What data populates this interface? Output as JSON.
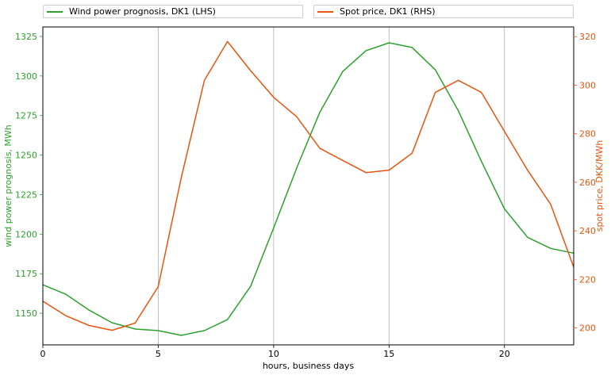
{
  "chart_data": {
    "type": "line",
    "xlabel": "hours, business days",
    "x": [
      0,
      1,
      2,
      3,
      4,
      5,
      6,
      7,
      8,
      9,
      10,
      11,
      12,
      13,
      14,
      15,
      16,
      17,
      18,
      19,
      20,
      21,
      22,
      23
    ],
    "xlim": [
      0,
      23
    ],
    "xticks": [
      0,
      5,
      10,
      15,
      20
    ],
    "grid": "vertical lines at x ticks",
    "legend": "above plot, two boxes side by side",
    "series": [
      {
        "name": "Wind power prognosis, DK1 (LHS)",
        "axis": "left",
        "color": "#2ca02c",
        "values": [
          1168,
          1162,
          1152,
          1144,
          1140,
          1139,
          1136,
          1139,
          1146,
          1167,
          1204,
          1242,
          1277,
          1303,
          1316,
          1321,
          1318,
          1304,
          1278,
          1246,
          1216,
          1198,
          1191,
          1188
        ]
      },
      {
        "name": "Spot price, DK1 (RHS)",
        "axis": "right",
        "color": "#e6550d",
        "values": [
          211,
          205,
          201,
          199,
          202,
          217,
          262,
          302,
          318,
          306,
          295,
          287,
          274,
          269,
          264,
          265,
          272,
          297,
          302,
          297,
          281,
          265,
          251,
          225
        ]
      }
    ],
    "y_left": {
      "label": "wind power prognosis, MWh",
      "color": "#2ca02c",
      "ylim": [
        1130,
        1331
      ],
      "ticks": [
        1150,
        1175,
        1200,
        1225,
        1250,
        1275,
        1300,
        1325
      ]
    },
    "y_right": {
      "label": "spot price, DKK/MWh",
      "color": "#e6550d",
      "ylim": [
        193,
        324
      ],
      "ticks": [
        200,
        220,
        240,
        260,
        280,
        300,
        320
      ]
    }
  }
}
